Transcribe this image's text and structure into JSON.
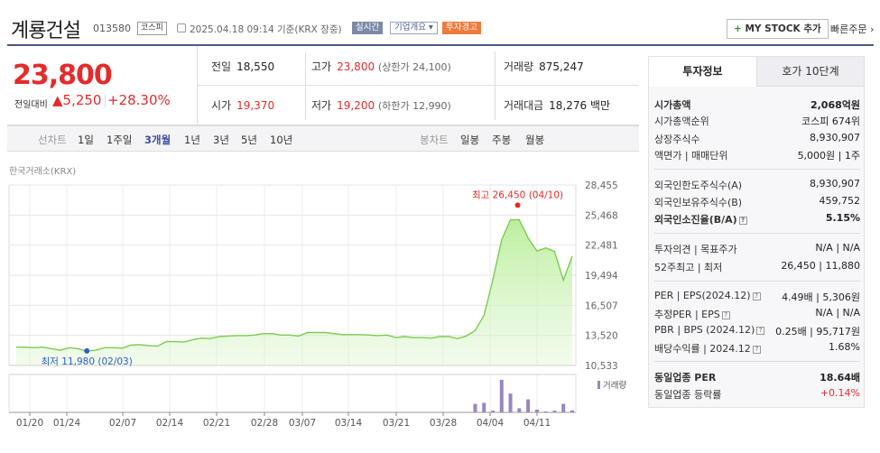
{
  "header": {
    "title": "계룡건설",
    "code": "013580",
    "market": "코스피",
    "datetime": "2025.04.18 09:14 기준(KRX 장중)",
    "realtime_label": "실시간",
    "company_label": "기업개요 ▾",
    "warning_label": "투자경고",
    "mystock_label": "MY STOCK 추가",
    "mystock_plus": "+",
    "quick_label": "빠른주문 ›"
  },
  "quote": {
    "price": "23,800",
    "compare_label": "전일대비",
    "change": "▲5,250",
    "change_pct": "+28.30%",
    "prev_close_label": "전일",
    "prev_close": "18,550",
    "high_label": "고가",
    "high": "23,800",
    "upper_limit": "(상한가 24,100)",
    "volume_label": "거래량",
    "volume": "875,247",
    "open_label": "시가",
    "open": "19,370",
    "low_label": "저가",
    "low": "19,200",
    "lower_limit": "(하한가 12,990)",
    "amount_label": "거래대금",
    "amount": "18,276 백만"
  },
  "chart_tabs": {
    "line_chart": "선차트",
    "d1": "1일",
    "w1": "1주일",
    "m3": "3개월",
    "y1": "1년",
    "y3": "3년",
    "y5": "5년",
    "y10": "10년",
    "candle_chart": "봉차트",
    "daily": "일봉",
    "weekly": "주봉",
    "monthly": "월봉"
  },
  "chart_source": "한국거래소(KRX)",
  "chart_data": {
    "type": "area",
    "y_ticks": [
      "28,455",
      "25,468",
      "22,481",
      "19,494",
      "16,507",
      "13,520",
      "10,533"
    ],
    "ylim": [
      10533,
      28455
    ],
    "x_ticks": [
      "01/20",
      "01/24",
      "02/07",
      "02/14",
      "02/21",
      "02/28",
      "03/07",
      "03/14",
      "03/21",
      "03/28",
      "04/04",
      "04/11"
    ],
    "high_label": "최고 26,450 (04/10)",
    "low_label": "최저 11,980 (02/03)",
    "high_value": 26450,
    "low_value": 11980,
    "volume_label": "거래량",
    "series": [
      {
        "values": [
          12350,
          12350,
          12300,
          12350,
          12200,
          12050,
          12300,
          12200,
          11980,
          12050,
          12300,
          12300,
          12250,
          12550,
          12600,
          12500,
          12450,
          12900,
          12900,
          12850,
          13100,
          13250,
          13200,
          13400,
          13450,
          13500,
          13500,
          13550,
          13700,
          13700,
          13550,
          13550,
          13450,
          13800,
          13800,
          13800,
          13700,
          13600,
          13600,
          13600,
          13550,
          13500,
          13550,
          13300,
          13400,
          13300,
          13300,
          13250,
          13400,
          13400,
          13200,
          13450,
          14000,
          15500,
          19000,
          23000,
          25000,
          25000,
          23200,
          21900,
          22200,
          21850,
          19000,
          21400
        ]
      }
    ],
    "volume": [
      0,
      0,
      0,
      0,
      0,
      0,
      0,
      0,
      0,
      0,
      0,
      0,
      0,
      0,
      0,
      0,
      0,
      0,
      0,
      0,
      0,
      0,
      0,
      0,
      0,
      0,
      0,
      0,
      0,
      0,
      0,
      0,
      0,
      0,
      0,
      0,
      0,
      0,
      0,
      0,
      0,
      0,
      0,
      0,
      0,
      0,
      0,
      0,
      0,
      0,
      0,
      0,
      0.25,
      0.28,
      0.05,
      0.95,
      0.55,
      0.12,
      0.38,
      0.08,
      0.03,
      0.05,
      0.25,
      0.06
    ]
  },
  "side": {
    "tab_info": "투자정보",
    "tab_orderbook": "호가 10단계",
    "rows": {
      "market_cap_label": "시가총액",
      "market_cap": "2,068억원",
      "market_cap_rank_label": "시가총액순위",
      "market_cap_rank": "코스피 674위",
      "shares_label": "상장주식수",
      "shares": "8,930,907",
      "par_label": "액면가 | 매매단위",
      "par": "5,000원 | 1주",
      "foreign_limit_label": "외국인한도주식수(A)",
      "foreign_limit": "8,930,907",
      "foreign_held_label": "외국인보유주식수(B)",
      "foreign_held": "459,752",
      "foreign_ratio_label": "외국인소진율(B/A)",
      "foreign_ratio": "5.15%",
      "opinion_label": "투자의견 | 목표주가",
      "opinion": "N/A | N/A",
      "week52_label": "52주최고 | 최저",
      "week52": "26,450 | 11,880",
      "per_label": "PER | EPS(2024.12)",
      "per": "4.49배 | 5,306원",
      "est_per_label": "추정PER | EPS",
      "est_per": "N/A | N/A",
      "pbr_label": "PBR | BPS (2024.12)",
      "pbr": "0.25배 | 95,717원",
      "dividend_label": "배당수익률 | 2024.12",
      "dividend": "1.68%",
      "sector_per_label": "동일업종 PER",
      "sector_per": "18.64배",
      "sector_change_label": "동일업종 등락률",
      "sector_change": "+0.14%"
    }
  },
  "colors": {
    "accent_red": "#e52b2b",
    "header_navy": "#4a5a82",
    "area_fill": "#d8f5c8",
    "area_line": "#7ccc52",
    "volume_bar": "#9a86c0"
  }
}
